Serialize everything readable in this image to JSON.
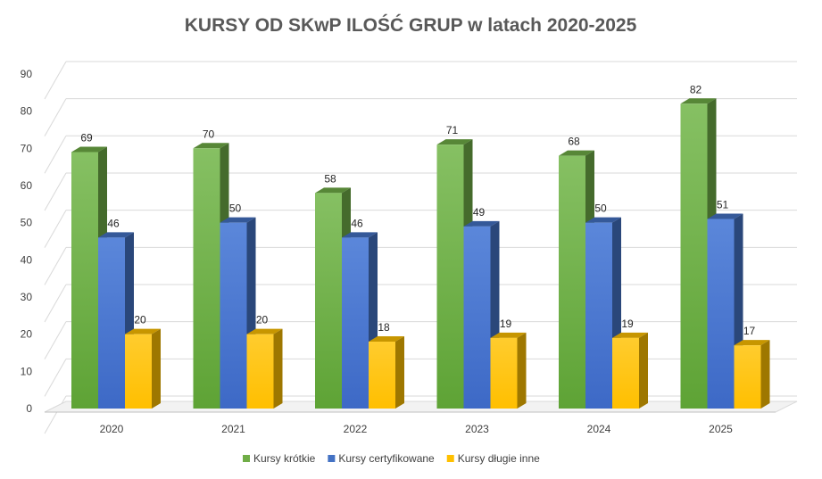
{
  "chart_data": {
    "type": "bar",
    "title": "KURSY OD SKwP ILOŚĆ GRUP w latach 2020-2025",
    "categories": [
      "2020",
      "2021",
      "2022",
      "2023",
      "2024",
      "2025"
    ],
    "series": [
      {
        "name": "Kursy krótkie",
        "values": [
          69,
          70,
          58,
          71,
          68,
          82
        ],
        "color": "#70AD47"
      },
      {
        "name": "Kursy certyfikowane",
        "values": [
          46,
          50,
          46,
          49,
          50,
          51
        ],
        "color": "#4472C4"
      },
      {
        "name": "Kursy długie inne",
        "values": [
          20,
          20,
          18,
          19,
          19,
          17
        ],
        "color": "#FFC000"
      }
    ],
    "ylim": [
      0,
      90
    ],
    "yticks": [
      0,
      10,
      20,
      30,
      40,
      50,
      60,
      70,
      80,
      90
    ],
    "grid": true,
    "legend": "bottom",
    "style": "3d-clustered-column"
  }
}
